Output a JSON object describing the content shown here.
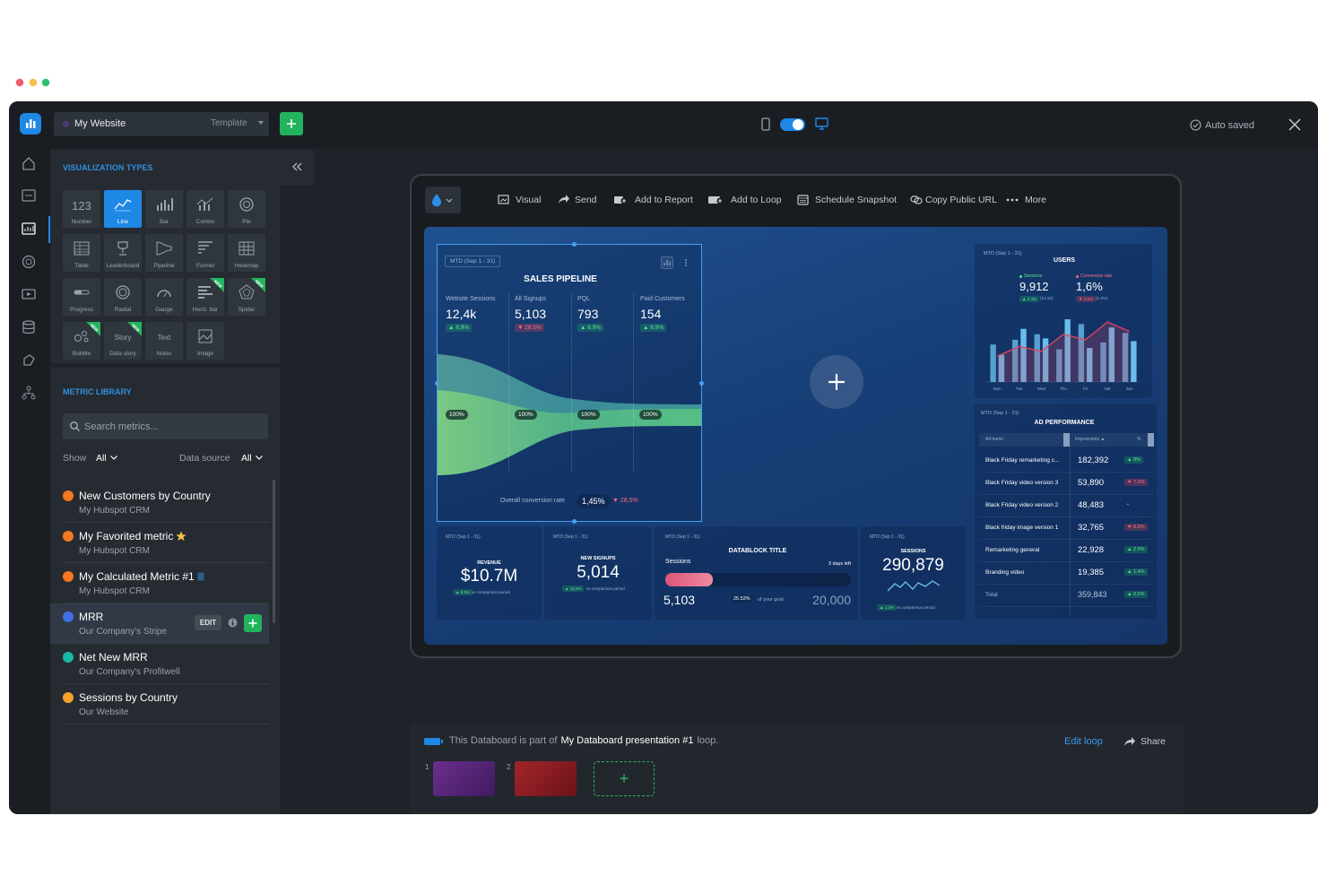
{
  "window": {
    "site_name": "My Website",
    "template": "Template",
    "save_status": "Auto saved"
  },
  "visualization_types": {
    "title": "VISUALIZATION TYPES",
    "items": [
      {
        "icon_text": "123",
        "label": "Number"
      },
      {
        "label": "Line",
        "selected": true
      },
      {
        "label": "Bar"
      },
      {
        "label": "Combo"
      },
      {
        "label": "Pie"
      },
      {
        "label": "Table"
      },
      {
        "label": "Leaderboard"
      },
      {
        "label": "Pipeline"
      },
      {
        "label": "Funnel"
      },
      {
        "label": "Heatmap"
      },
      {
        "label": "Progress"
      },
      {
        "label": "Radial"
      },
      {
        "label": "Gauge"
      },
      {
        "label": "Horiz. bar",
        "badge": "NEW"
      },
      {
        "label": "Spider",
        "badge": "NEW"
      },
      {
        "label": "Bubble",
        "badge": "NEW"
      },
      {
        "icon_text": "Story",
        "label": "Data story",
        "badge": "NEW"
      },
      {
        "icon_text": "Text",
        "label": "Notes"
      },
      {
        "label": "Image"
      }
    ]
  },
  "metric_library": {
    "title": "METRIC LIBRARY",
    "search_placeholder": "Search metrics...",
    "show_label": "Show",
    "show_value": "All",
    "source_label": "Data source",
    "source_value": "All",
    "edit_button": "EDIT",
    "metrics": [
      {
        "name": "New Customers by Country",
        "source": "My Hubspot CRM"
      },
      {
        "name": "My Favorited metric",
        "source": "My Hubspot CRM"
      },
      {
        "name": "My Calculated Metric #1",
        "source": "My Hubspot CRM"
      },
      {
        "name": "MRR",
        "source": "Our Company's Stripe"
      },
      {
        "name": "Net New MRR",
        "source": "Our Company's Profitwell"
      },
      {
        "name": "Sessions by Country",
        "source": "Our Website"
      }
    ]
  },
  "toolbar": [
    "Visual",
    "Send",
    "Add to Report",
    "Add to Loop",
    "Schedule Snapshot",
    "Copy Public URL",
    "More"
  ],
  "dashboard": {
    "sales_pipeline": {
      "period": "MTD (Sep 1 - 31)",
      "title": "SALES PIPELINE",
      "stages": [
        {
          "label": "Website Sessions",
          "value": "12,4k",
          "change": "▲ 8.9%"
        },
        {
          "label": "All Signups",
          "value": "5,103",
          "change": "▼ 28.5%"
        },
        {
          "label": "PQL",
          "value": "793",
          "change": "▲ 8.9%"
        },
        {
          "label": "Paid Customers",
          "value": "154",
          "change": "▲ 8.9%"
        }
      ],
      "stage_rates": [
        "100%",
        "100%",
        "100%",
        "100%"
      ],
      "conversion_label": "Overall conversion rate",
      "conversion_value": "1,45%",
      "conversion_change": "▼ 28,5%"
    },
    "users": {
      "period": "MTD (Sep 1 - 31)",
      "title": "USERS",
      "sessions_label": "Sessions",
      "sessions_value": "9,912",
      "sessions_change": "▲ 2.4%",
      "sessions_previous": "(14.15)",
      "conversion_label": "Conversion rate",
      "conversion_value": "1,6%",
      "conversion_change": "▼ 0.5%",
      "conversion_previous": "(1.4%)",
      "chart": {
        "categories": [
          "Mon",
          "Tue",
          "Wed",
          "Thu",
          "Fri",
          "Sat",
          "Sun"
        ],
        "ylim": [
          0,
          100
        ],
        "bar_color": "#6ec6f5",
        "line_color": "#e0455e",
        "bar_series": [
          {
            "values": [
              55,
              62,
              70,
              48,
              85,
              58,
              72
            ]
          },
          {
            "values": [
              40,
              78,
              64,
              92,
              50,
              80,
              60
            ]
          }
        ],
        "line": [
          38,
          52,
          45,
          70,
          62,
          88,
          74
        ]
      }
    },
    "ad_performance": {
      "period": "MTD (Sep 1 - 31)",
      "title": "AD PERFORMANCE",
      "columns": [
        "Ad name",
        "Impressions ▲",
        "%"
      ],
      "rows": [
        [
          "Black Friday remarketing c...",
          "182,392",
          "▲ 8%"
        ],
        [
          "Black Friday video version 3",
          "53,890",
          "▼ 7.3%"
        ],
        [
          "Black Friday video version 2",
          "48,483",
          "•"
        ],
        [
          "Black friday image version 1",
          "32,765",
          "▼ 8.9%"
        ],
        [
          "Remarketing general",
          "22,928",
          "▲ 2.9%"
        ],
        [
          "Branding video",
          "19,385",
          "▲ 1.4%"
        ],
        [
          "Total",
          "359,843",
          "▲ 0.5%"
        ]
      ]
    },
    "revenue": {
      "period": "MTD (Sep 1 - 31)",
      "title": "REVENUE",
      "value": "$10.7M",
      "change": "▲ 8.9%",
      "comparison": "vs comparison period"
    },
    "new_signups": {
      "period": "MTD (Sep 1 - 31)",
      "title": "NEW SIGNUPS",
      "value": "5,014",
      "change": "▲ 14.2%",
      "comparison": "vs comparison period"
    },
    "datablock": {
      "period": "MTD (Sep 1 - 31)",
      "title": "DATABLOCK TITLE",
      "metric": "Sessions",
      "time_left": "3 days left",
      "value": "5,103",
      "progress": 25.52,
      "progress_label": "25.52%",
      "goal_text": "of your goal",
      "goal": "20,000"
    },
    "sessions": {
      "period": "MTD (Sep 1 - 31)",
      "title": "SESSIONS",
      "value": "290,879",
      "change": "▲ 1.3%",
      "comparison": "vs comparison period"
    }
  },
  "loop": {
    "prefix": "This Databoard is part of",
    "name": "My Databoard presentation #1",
    "suffix": "loop.",
    "edit": "Edit loop",
    "share": "Share",
    "slides": [
      "1",
      "2"
    ]
  }
}
